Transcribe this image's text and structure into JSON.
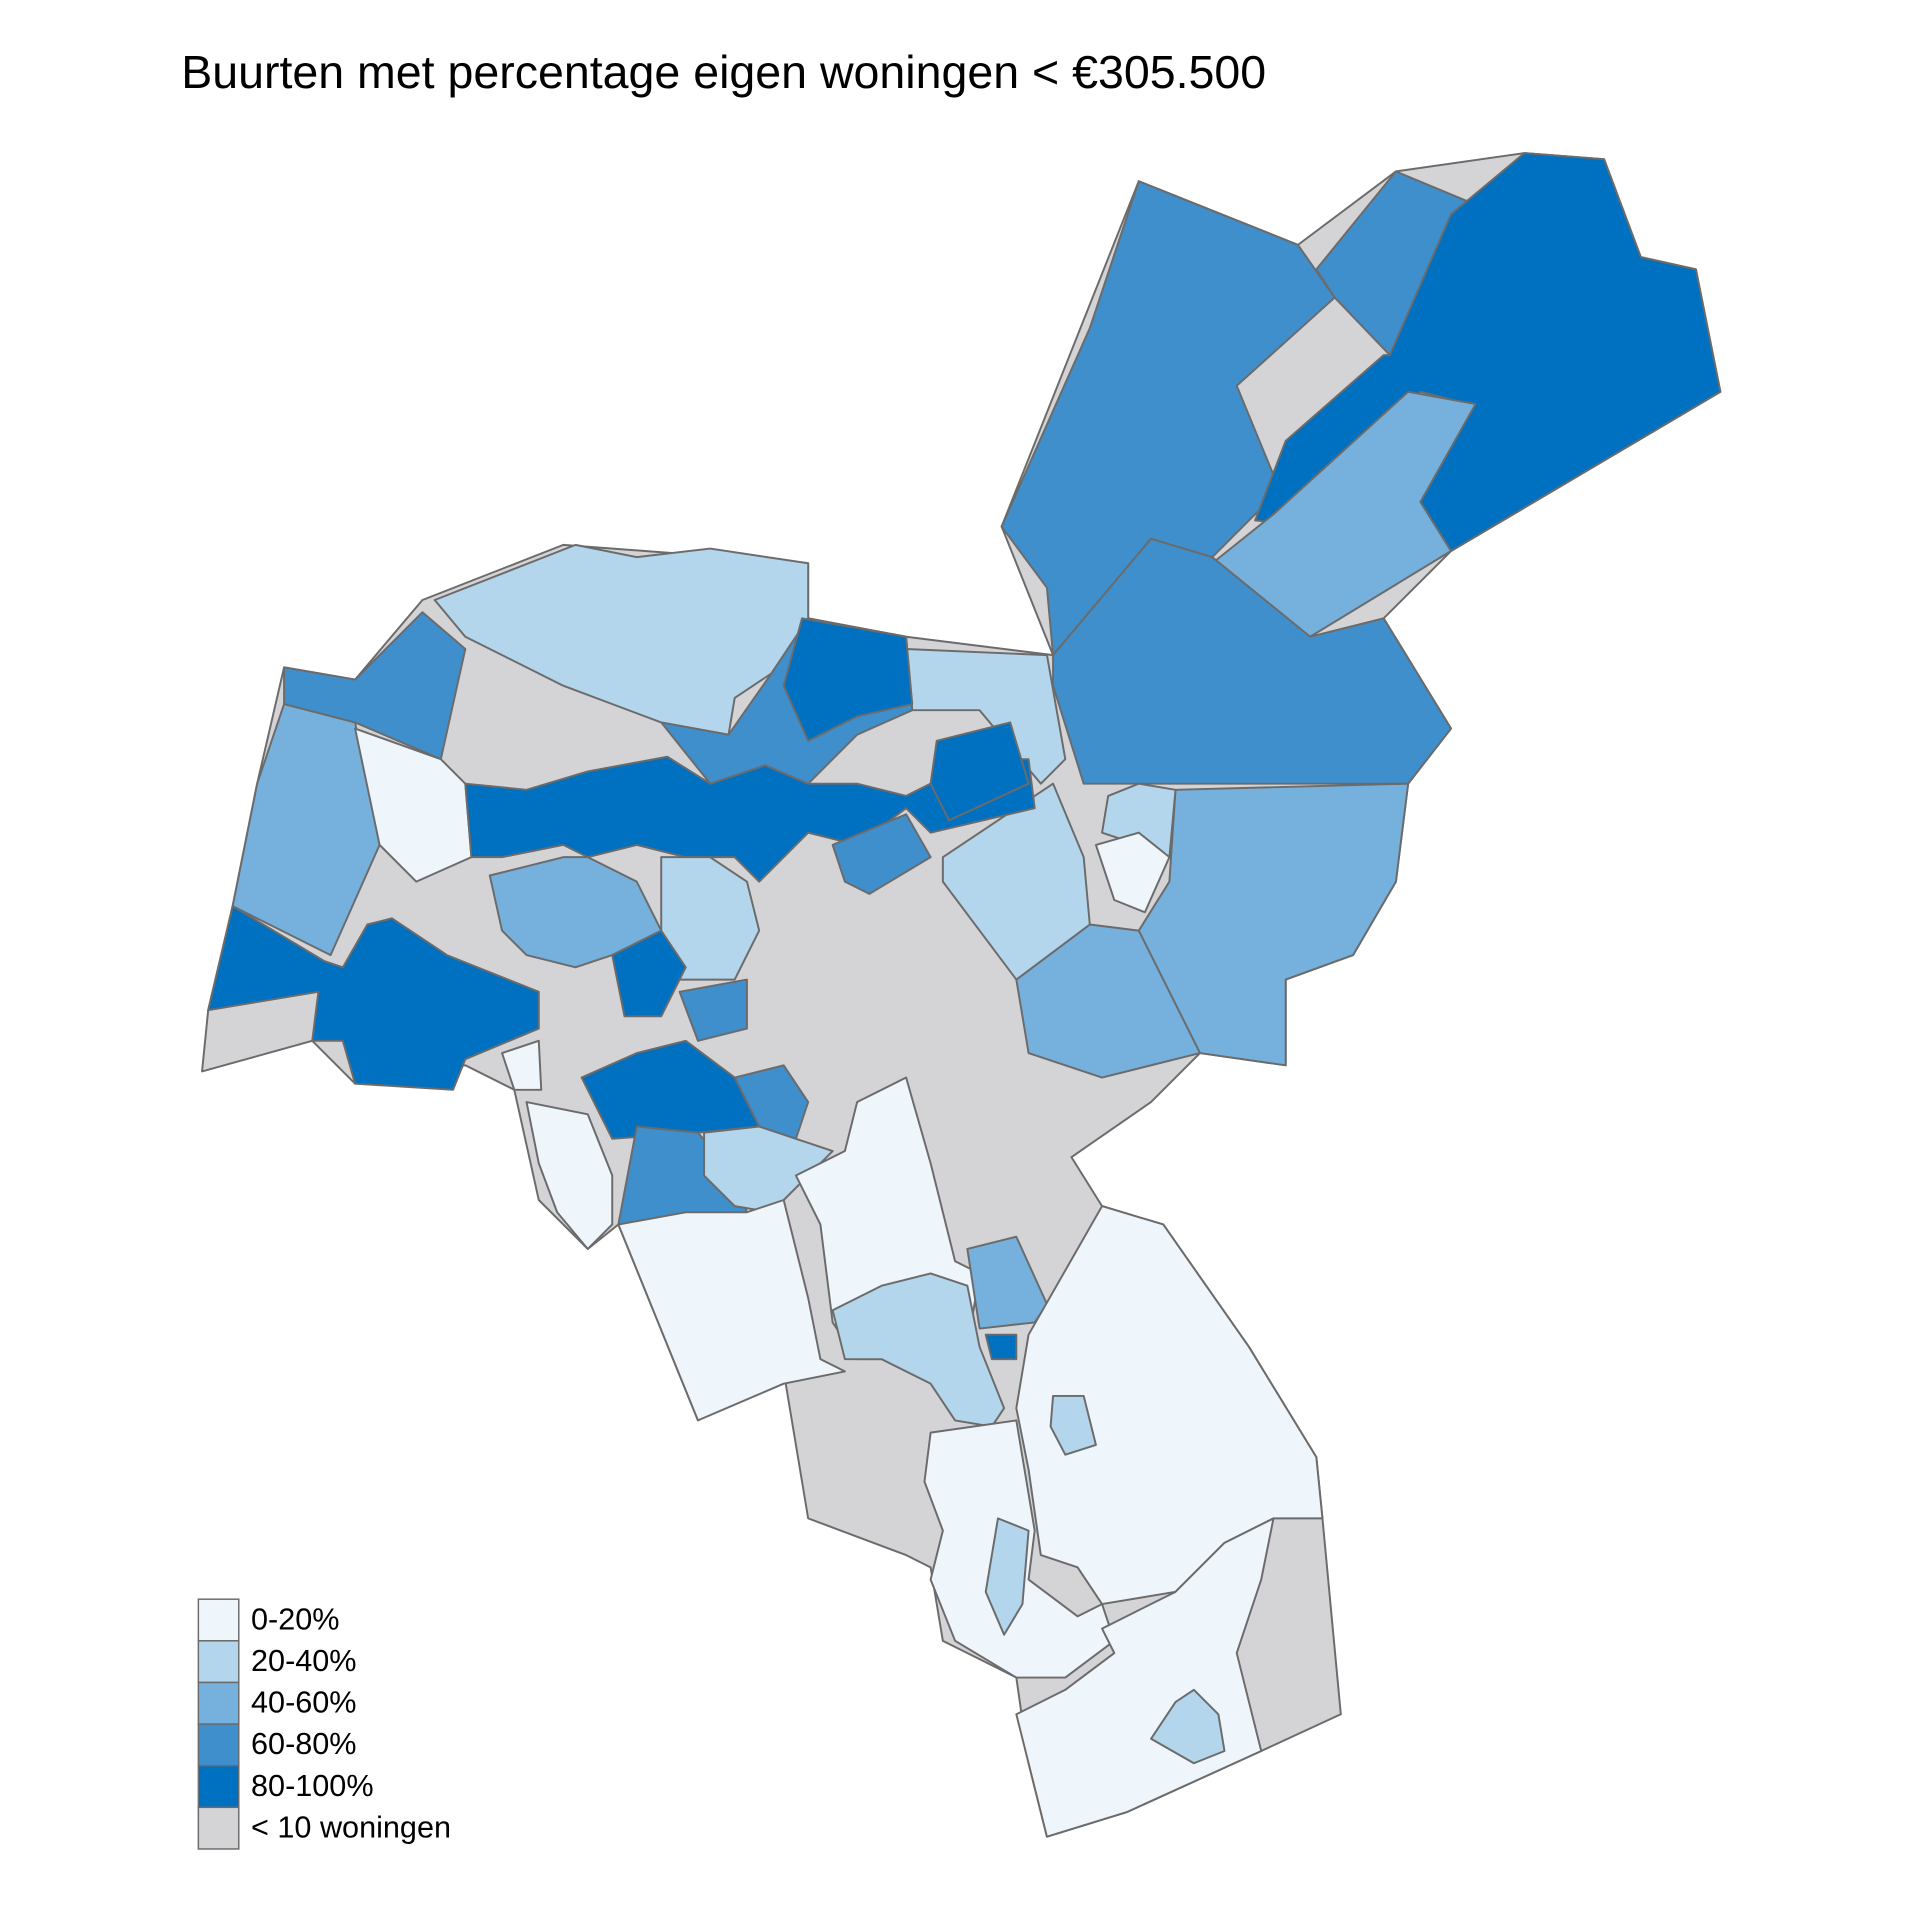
{
  "title": "Buurten met percentage eigen woningen < €305.500",
  "legend": [
    {
      "label": "0-20%",
      "color": "#eef5fb"
    },
    {
      "label": "20-40%",
      "color": "#b3d6ec"
    },
    {
      "label": "40-60%",
      "color": "#75b1dc"
    },
    {
      "label": "60-80%",
      "color": "#3e8fcc"
    },
    {
      "label": "80-100%",
      "color": "#0070c0"
    },
    {
      "label": "< 10 woningen",
      "color": "#d4d3d6"
    }
  ]
}
